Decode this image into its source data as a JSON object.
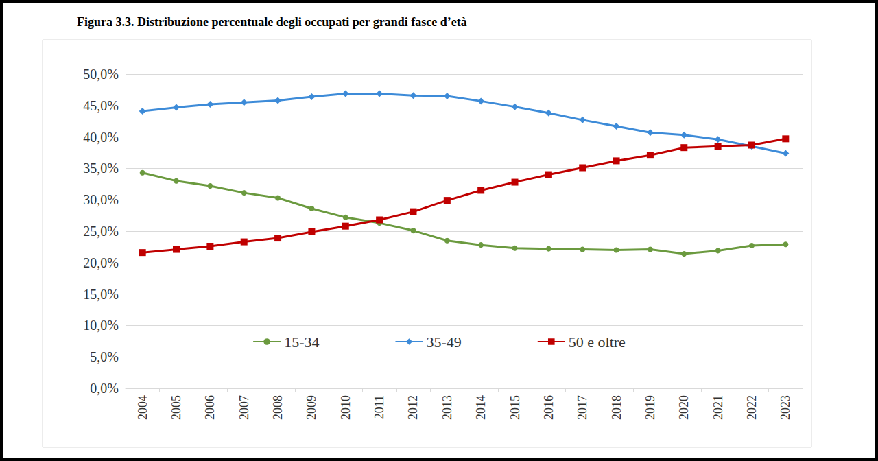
{
  "chart_data": {
    "type": "line",
    "title": "Figura 3.3. Distribuzione percentuale degli occupati per grandi fasce d’età",
    "categories": [
      "2004",
      "2005",
      "2006",
      "2007",
      "2008",
      "2009",
      "2010",
      "2011",
      "2012",
      "2013",
      "2014",
      "2015",
      "2016",
      "2017",
      "2018",
      "2019",
      "2020",
      "2021",
      "2022",
      "2023"
    ],
    "series": [
      {
        "name": "15-34",
        "color": "#6B9A3F",
        "marker": "circle",
        "values": [
          34.3,
          33.0,
          32.2,
          31.1,
          30.3,
          28.6,
          27.2,
          26.3,
          25.1,
          23.5,
          22.8,
          22.3,
          22.2,
          22.1,
          22.0,
          22.1,
          21.4,
          21.9,
          22.7,
          22.9
        ]
      },
      {
        "name": "35-49",
        "color": "#3D8BD8",
        "marker": "diamond",
        "values": [
          44.1,
          44.7,
          45.2,
          45.5,
          45.8,
          46.4,
          46.9,
          46.9,
          46.6,
          46.5,
          45.7,
          44.8,
          43.8,
          42.7,
          41.7,
          40.7,
          40.3,
          39.6,
          38.5,
          37.4
        ]
      },
      {
        "name": "50 e oltre",
        "color": "#C00000",
        "marker": "square",
        "values": [
          21.6,
          22.1,
          22.6,
          23.3,
          23.9,
          24.9,
          25.8,
          26.8,
          28.1,
          29.9,
          31.5,
          32.8,
          34.0,
          35.1,
          36.2,
          37.1,
          38.3,
          38.5,
          38.7,
          39.7
        ]
      }
    ],
    "ylim": [
      0,
      50
    ],
    "yticks": [
      {
        "value": 0,
        "label": "0,0%"
      },
      {
        "value": 5,
        "label": "5,0%"
      },
      {
        "value": 10,
        "label": "10,0%"
      },
      {
        "value": 15,
        "label": "15,0%"
      },
      {
        "value": 20,
        "label": "20,0%"
      },
      {
        "value": 25,
        "label": "25,0%"
      },
      {
        "value": 30,
        "label": "30,0%"
      },
      {
        "value": 35,
        "label": "35,0%"
      },
      {
        "value": 40,
        "label": "40,0%"
      },
      {
        "value": 45,
        "label": "45,0%"
      },
      {
        "value": 50,
        "label": "50,0%"
      }
    ],
    "grid": true,
    "legend": "bottom"
  }
}
